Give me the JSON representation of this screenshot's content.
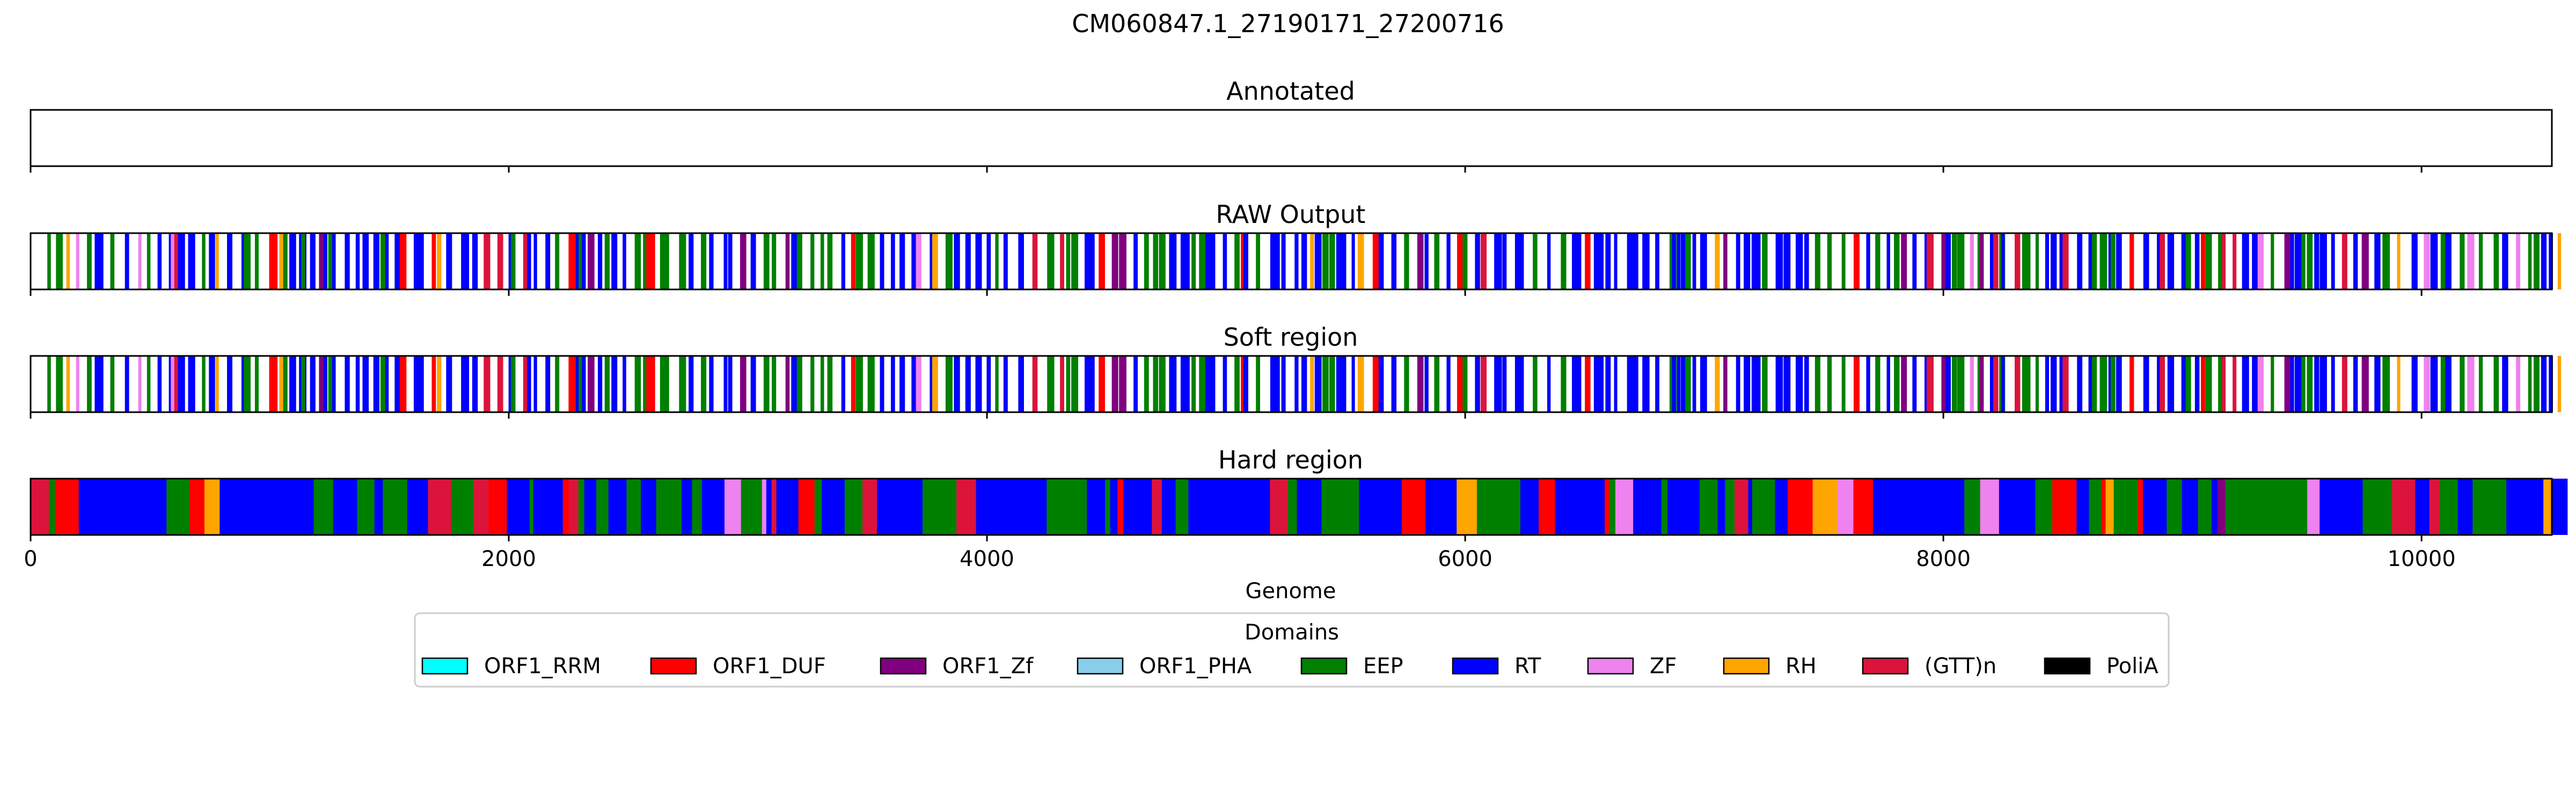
{
  "chart_data": {
    "type": "genome-track",
    "title": "CM060847.1_27190171_27200716",
    "xlabel": "Genome",
    "xlim": [
      0,
      10545
    ],
    "xticks": [
      0,
      2000,
      4000,
      6000,
      8000,
      10000
    ],
    "tracks": [
      {
        "name": "Annotated"
      },
      {
        "name": "RAW Output"
      },
      {
        "name": "Soft region"
      },
      {
        "name": "Hard region"
      }
    ],
    "legend": {
      "title": "Domains",
      "placement": "bottom-center",
      "entries": [
        {
          "label": "ORF1_RRM",
          "color": "#00ffff"
        },
        {
          "label": "ORF1_DUF",
          "color": "#ff0000"
        },
        {
          "label": "ORF1_Zf",
          "color": "#800080"
        },
        {
          "label": "ORF1_PHA",
          "color": "#87ceeb"
        },
        {
          "label": "EEP",
          "color": "#008000"
        },
        {
          "label": "RT",
          "color": "#0000ff"
        },
        {
          "label": "ZF",
          "color": "#ee82ee"
        },
        {
          "label": "RH",
          "color": "#ffa500"
        },
        {
          "label": "(GTT)n",
          "color": "#dc143c"
        },
        {
          "label": "PoliA",
          "color": "#000000"
        }
      ]
    }
  }
}
